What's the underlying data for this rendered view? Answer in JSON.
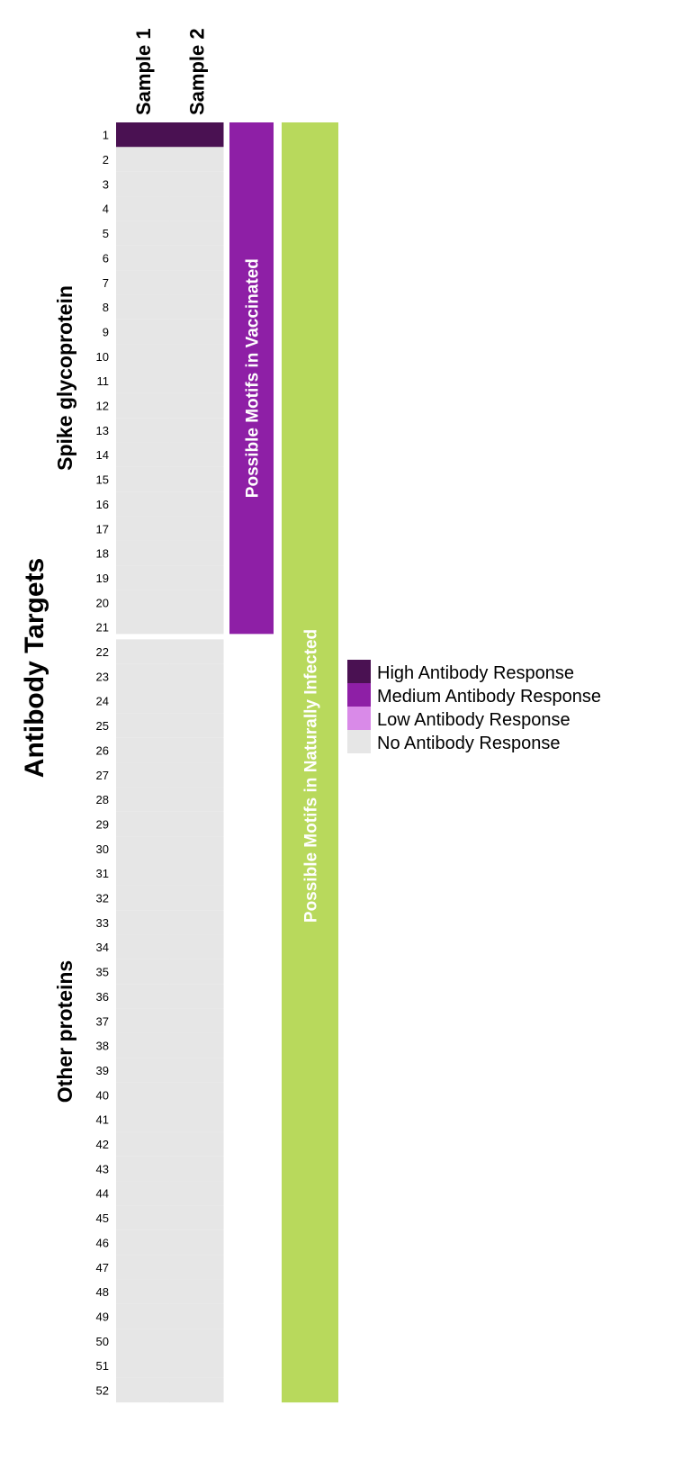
{
  "chart_data": {
    "type": "heatmap",
    "title": "",
    "ylabel": "Antibody Targets",
    "columns": [
      "Sample 1",
      "Sample 2"
    ],
    "rows": [
      "1",
      "2",
      "3",
      "4",
      "5",
      "6",
      "7",
      "8",
      "9",
      "10",
      "11",
      "12",
      "13",
      "14",
      "15",
      "16",
      "17",
      "18",
      "19",
      "20",
      "21",
      "22",
      "23",
      "24",
      "25",
      "26",
      "27",
      "28",
      "29",
      "30",
      "31",
      "32",
      "33",
      "34",
      "35",
      "36",
      "37",
      "38",
      "39",
      "40",
      "41",
      "42",
      "43",
      "44",
      "45",
      "46",
      "47",
      "48",
      "49",
      "50",
      "51",
      "52"
    ],
    "row_groups": [
      {
        "name": "Spike glycoprotein",
        "rows": [
          1,
          21
        ]
      },
      {
        "name": "Other proteins",
        "rows": [
          22,
          52
        ]
      }
    ],
    "cells": [
      [
        "High Antibody Response",
        "High Antibody Response"
      ],
      [
        "No Antibody Response",
        "No Antibody Response"
      ],
      [
        "No Antibody Response",
        "No Antibody Response"
      ],
      [
        "No Antibody Response",
        "No Antibody Response"
      ],
      [
        "No Antibody Response",
        "No Antibody Response"
      ],
      [
        "No Antibody Response",
        "No Antibody Response"
      ],
      [
        "No Antibody Response",
        "No Antibody Response"
      ],
      [
        "No Antibody Response",
        "No Antibody Response"
      ],
      [
        "No Antibody Response",
        "No Antibody Response"
      ],
      [
        "No Antibody Response",
        "No Antibody Response"
      ],
      [
        "No Antibody Response",
        "No Antibody Response"
      ],
      [
        "No Antibody Response",
        "No Antibody Response"
      ],
      [
        "No Antibody Response",
        "No Antibody Response"
      ],
      [
        "No Antibody Response",
        "No Antibody Response"
      ],
      [
        "No Antibody Response",
        "No Antibody Response"
      ],
      [
        "No Antibody Response",
        "No Antibody Response"
      ],
      [
        "No Antibody Response",
        "No Antibody Response"
      ],
      [
        "No Antibody Response",
        "No Antibody Response"
      ],
      [
        "No Antibody Response",
        "No Antibody Response"
      ],
      [
        "No Antibody Response",
        "No Antibody Response"
      ],
      [
        "No Antibody Response",
        "No Antibody Response"
      ],
      [
        "No Antibody Response",
        "No Antibody Response"
      ],
      [
        "No Antibody Response",
        "No Antibody Response"
      ],
      [
        "No Antibody Response",
        "No Antibody Response"
      ],
      [
        "No Antibody Response",
        "No Antibody Response"
      ],
      [
        "No Antibody Response",
        "No Antibody Response"
      ],
      [
        "No Antibody Response",
        "No Antibody Response"
      ],
      [
        "No Antibody Response",
        "No Antibody Response"
      ],
      [
        "No Antibody Response",
        "No Antibody Response"
      ],
      [
        "No Antibody Response",
        "No Antibody Response"
      ],
      [
        "No Antibody Response",
        "No Antibody Response"
      ],
      [
        "No Antibody Response",
        "No Antibody Response"
      ],
      [
        "No Antibody Response",
        "No Antibody Response"
      ],
      [
        "No Antibody Response",
        "No Antibody Response"
      ],
      [
        "No Antibody Response",
        "No Antibody Response"
      ],
      [
        "No Antibody Response",
        "No Antibody Response"
      ],
      [
        "No Antibody Response",
        "No Antibody Response"
      ],
      [
        "No Antibody Response",
        "No Antibody Response"
      ],
      [
        "No Antibody Response",
        "No Antibody Response"
      ],
      [
        "No Antibody Response",
        "No Antibody Response"
      ],
      [
        "No Antibody Response",
        "No Antibody Response"
      ],
      [
        "No Antibody Response",
        "No Antibody Response"
      ],
      [
        "No Antibody Response",
        "No Antibody Response"
      ],
      [
        "No Antibody Response",
        "No Antibody Response"
      ],
      [
        "No Antibody Response",
        "No Antibody Response"
      ],
      [
        "No Antibody Response",
        "No Antibody Response"
      ],
      [
        "No Antibody Response",
        "No Antibody Response"
      ],
      [
        "No Antibody Response",
        "No Antibody Response"
      ],
      [
        "No Antibody Response",
        "No Antibody Response"
      ],
      [
        "No Antibody Response",
        "No Antibody Response"
      ],
      [
        "No Antibody Response",
        "No Antibody Response"
      ],
      [
        "No Antibody Response",
        "No Antibody Response"
      ]
    ],
    "motif_bars": [
      {
        "label": "Possible Motifs in Vaccinated",
        "rows": [
          1,
          21
        ],
        "color": "#8e1fa6"
      },
      {
        "label": "Possible Motifs in Naturally Infected",
        "rows": [
          1,
          52
        ],
        "color": "#b8d95c"
      }
    ],
    "legend": [
      {
        "label": "High Antibody Response",
        "color": "#4a1152"
      },
      {
        "label": "Medium Antibody Response",
        "color": "#8e1fa6"
      },
      {
        "label": "Low Antibody Response",
        "color": "#d98ae8"
      },
      {
        "label": "No Antibody Response",
        "color": "#e6e6e6"
      }
    ],
    "legend_position": "right"
  }
}
